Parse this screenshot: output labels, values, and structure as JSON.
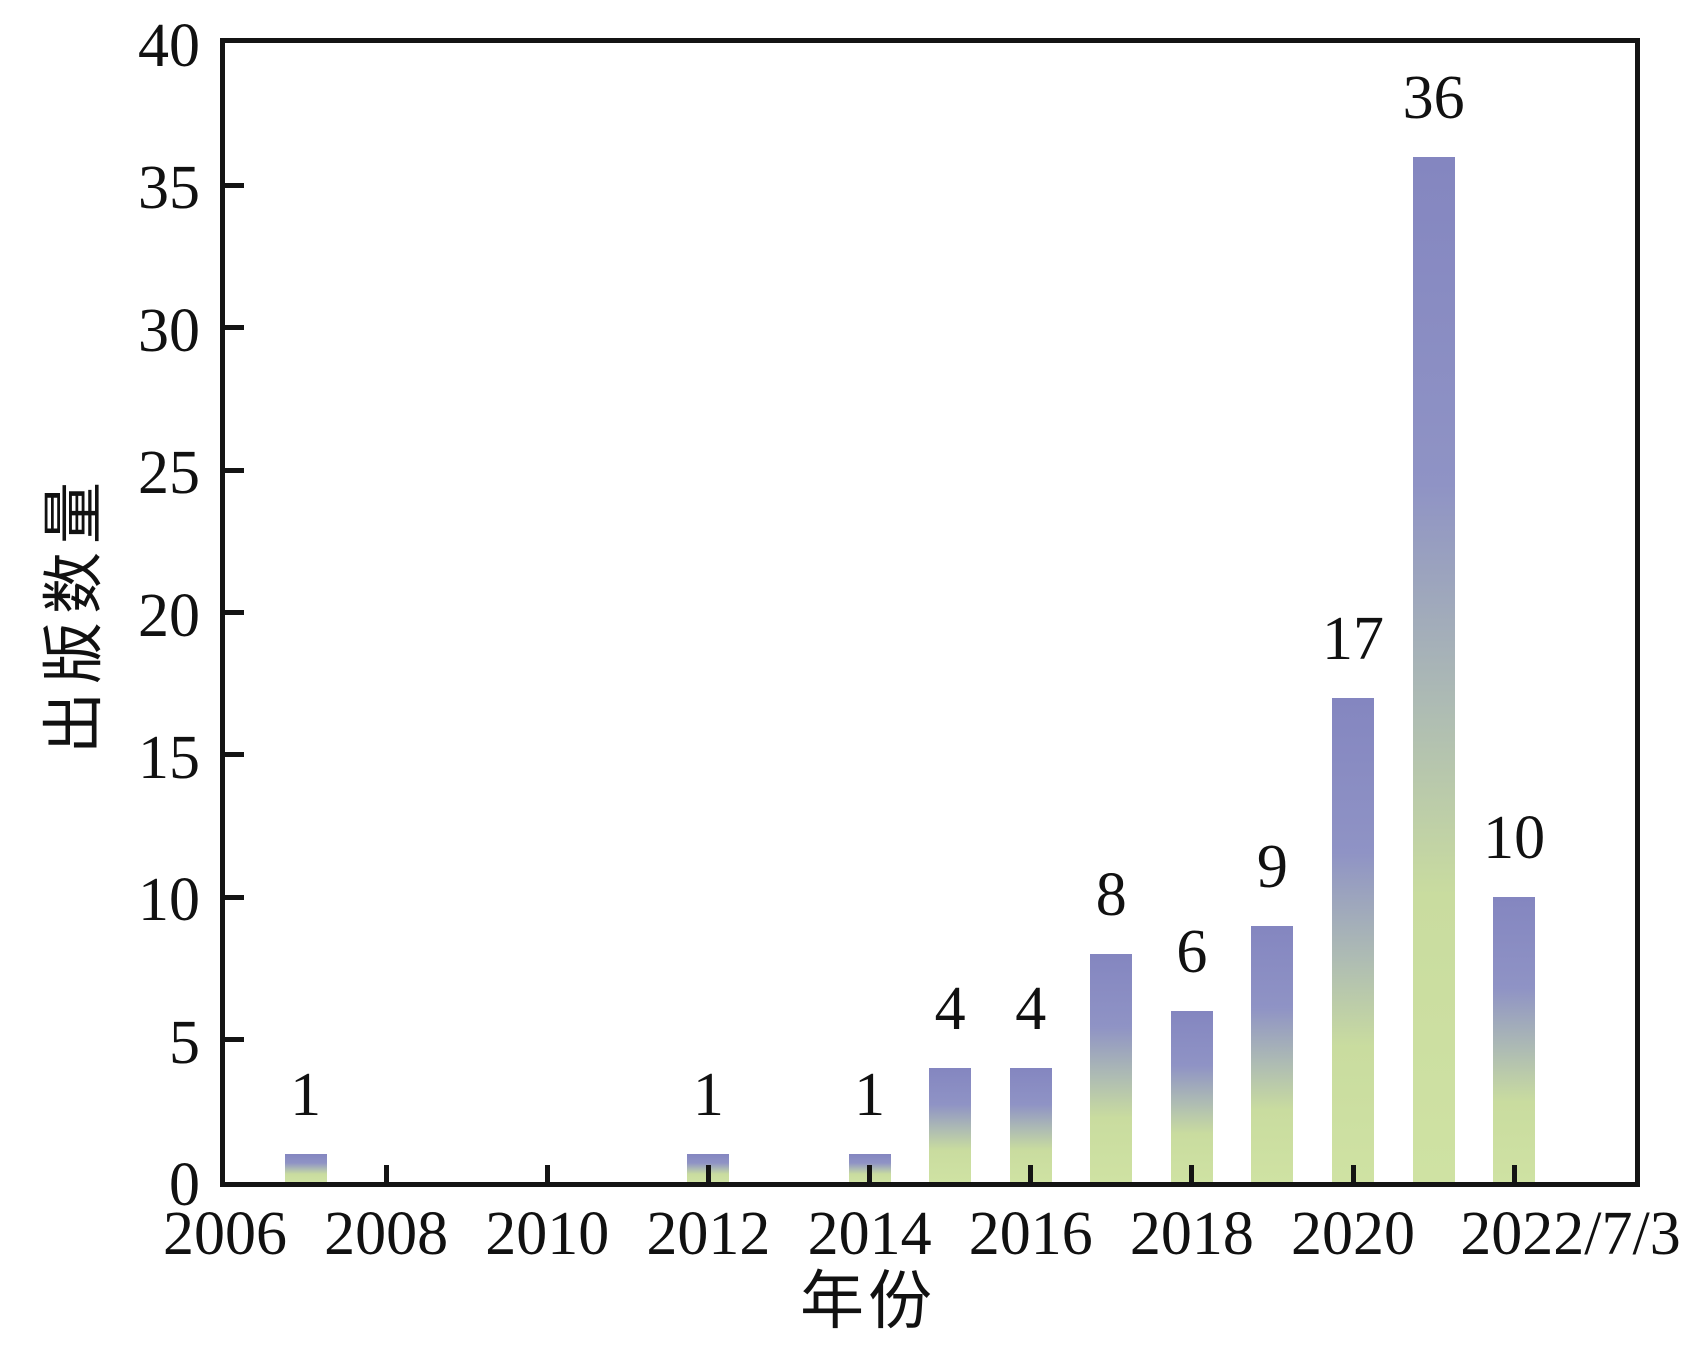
{
  "chart_data": {
    "type": "bar",
    "title": "",
    "xlabel": "年份",
    "ylabel": "出版数量",
    "x": [
      2007,
      2012,
      2014,
      2015,
      2016,
      2017,
      2018,
      2019,
      2020,
      2021,
      2022
    ],
    "values": [
      1,
      1,
      1,
      4,
      4,
      8,
      6,
      9,
      17,
      36,
      10
    ],
    "bar_value_labels": [
      "1",
      "1",
      "1",
      "4",
      "4",
      "8",
      "6",
      "9",
      "17",
      "36",
      "10"
    ],
    "xlim": [
      2006,
      2023.5
    ],
    "ylim": [
      0,
      40
    ],
    "y_ticks": [
      0,
      5,
      10,
      15,
      20,
      25,
      30,
      35,
      40
    ],
    "y_tick_labels": [
      "0",
      "5",
      "10",
      "15",
      "20",
      "25",
      "30",
      "35",
      "40"
    ],
    "x_ticks": [
      2008,
      2010,
      2012,
      2014,
      2016,
      2018,
      2020,
      2022
    ],
    "x_tick_label_positions": [
      2006,
      2008,
      2010,
      2012,
      2014,
      2016,
      2018,
      2020,
      2022.7
    ],
    "x_tick_label_texts": [
      "2006",
      "2008",
      "2010",
      "2012",
      "2014",
      "2016",
      "2018",
      "2020",
      "2022/7/3"
    ],
    "grid": false,
    "legend": null,
    "colors": {
      "bar_top": "#8486c0",
      "bar_bottom": "#cadd9e",
      "axis": "#141414",
      "text": "#111111",
      "background": "#ffffff"
    }
  }
}
